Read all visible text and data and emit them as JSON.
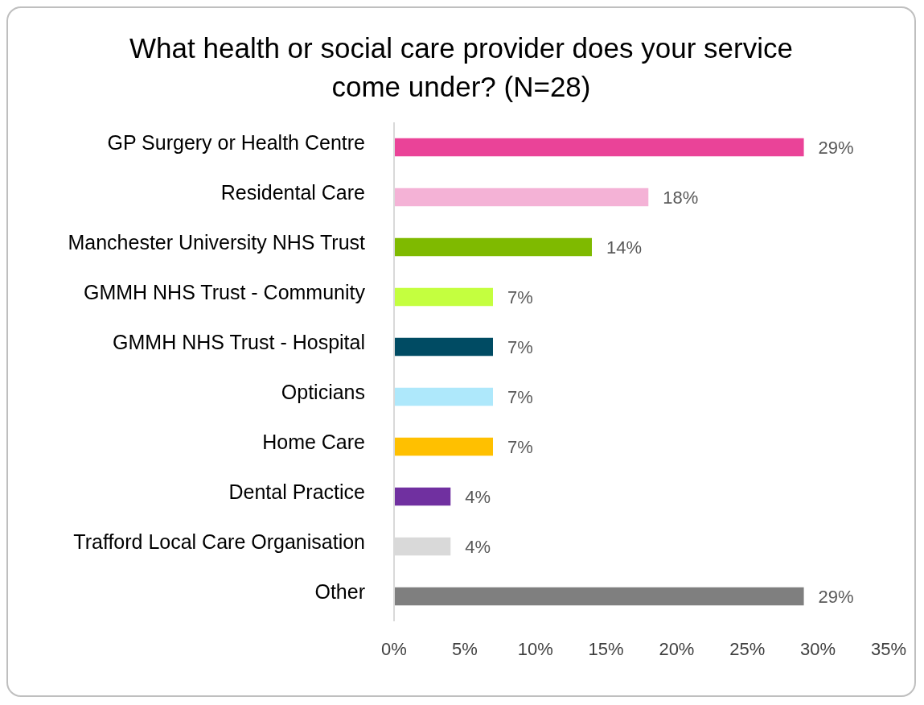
{
  "chart_data": {
    "type": "bar",
    "orientation": "horizontal",
    "title": "What health or social care provider does your service come under? (N=28)",
    "categories": [
      "GP Surgery or Health Centre",
      "Residental Care",
      "Manchester University NHS Trust",
      "GMMH NHS Trust - Community",
      "GMMH NHS Trust - Hospital",
      "Opticians",
      "Home Care",
      "Dental Practice",
      "Trafford Local Care Organisation",
      "Other"
    ],
    "values": [
      29,
      18,
      14,
      7,
      7,
      7,
      7,
      4,
      4,
      29
    ],
    "value_labels": [
      "29%",
      "18%",
      "14%",
      "7%",
      "7%",
      "7%",
      "7%",
      "4%",
      "4%",
      "29%"
    ],
    "colors": [
      "#ea4398",
      "#f4b2d6",
      "#7fba00",
      "#c4ff3f",
      "#004b63",
      "#aee8fb",
      "#ffc000",
      "#7030a0",
      "#d9d9d9",
      "#7f7f7f"
    ],
    "xlim": [
      0,
      35
    ],
    "xticks": [
      {
        "value": 0,
        "label": "0%"
      },
      {
        "value": 5,
        "label": "5%"
      },
      {
        "value": 10,
        "label": "10%"
      },
      {
        "value": 15,
        "label": "15%"
      },
      {
        "value": 20,
        "label": "20%"
      },
      {
        "value": 25,
        "label": "25%"
      },
      {
        "value": 30,
        "label": "30%"
      },
      {
        "value": 35,
        "label": "35%"
      }
    ],
    "grid": false,
    "legend": false
  }
}
